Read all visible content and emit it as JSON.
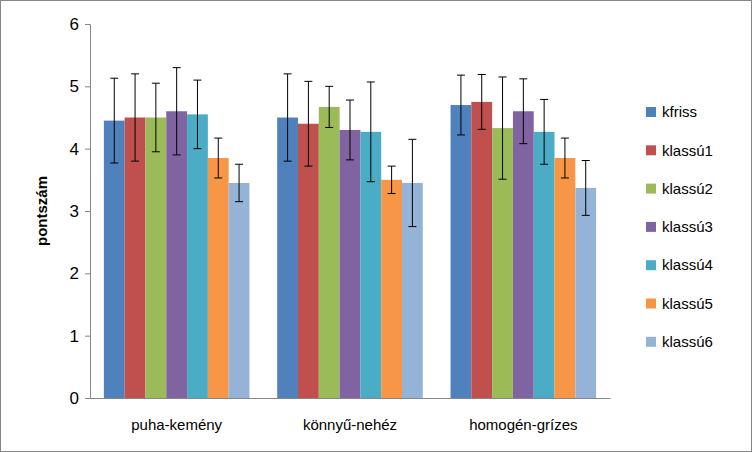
{
  "chart_data": {
    "type": "bar",
    "y_label": "pontszám",
    "categories": [
      "puha-kemény",
      "könnyű-nehéz",
      "homogén-grízes"
    ],
    "series": [
      {
        "name": "kfriss",
        "color": "#4F81BD",
        "values": [
          4.45,
          4.5,
          4.7
        ],
        "errors": [
          0.68,
          0.7,
          0.48
        ]
      },
      {
        "name": "klassú1",
        "color": "#C0504D",
        "values": [
          4.5,
          4.4,
          4.75
        ],
        "errors": [
          0.7,
          0.68,
          0.44
        ]
      },
      {
        "name": "klassú2",
        "color": "#9BBB59",
        "values": [
          4.5,
          4.67,
          4.33
        ],
        "errors": [
          0.55,
          0.33,
          0.82
        ]
      },
      {
        "name": "klassú3",
        "color": "#8064A2",
        "values": [
          4.6,
          4.3,
          4.6
        ],
        "errors": [
          0.7,
          0.48,
          0.52
        ]
      },
      {
        "name": "klassú4",
        "color": "#4BACC6",
        "values": [
          4.55,
          4.27,
          4.27
        ],
        "errors": [
          0.55,
          0.8,
          0.52
        ]
      },
      {
        "name": "klassú5",
        "color": "#F79646",
        "values": [
          3.85,
          3.5,
          3.85
        ],
        "errors": [
          0.32,
          0.22,
          0.32
        ]
      },
      {
        "name": "klassú6",
        "color": "#95B3D7",
        "values": [
          3.45,
          3.45,
          3.37
        ],
        "errors": [
          0.3,
          0.7,
          0.44
        ]
      }
    ],
    "ylim": [
      0,
      6
    ],
    "yticks": [
      0,
      1,
      2,
      3,
      4,
      5,
      6
    ],
    "grid": false,
    "legend": "right"
  }
}
